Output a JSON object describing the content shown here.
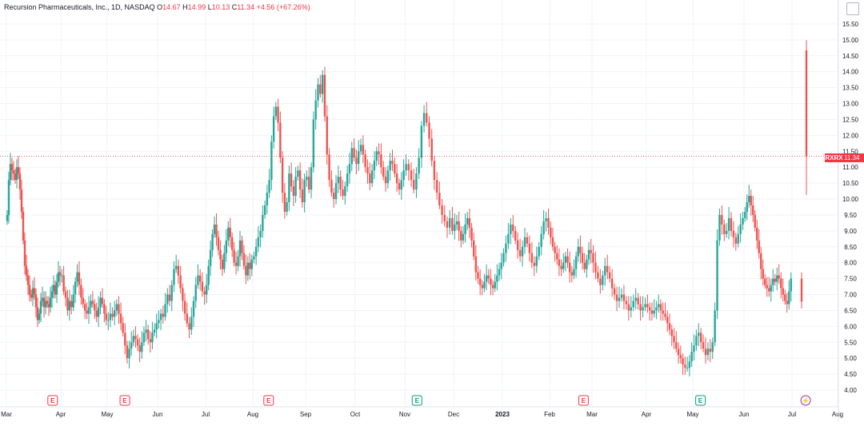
{
  "header": {
    "name": "Recursion Pharmaceuticals, Inc., 1D, NASDAQ",
    "o_label": "O",
    "o": "14.67",
    "h_label": "H",
    "h": "14.99",
    "l_label": "L",
    "l": "10.13",
    "c_label": "C",
    "c": "11.34",
    "change": "+4.56 (+67.26%)"
  },
  "price_tag": {
    "symbol": "RXRX",
    "price": "11.34"
  },
  "colors": {
    "up": "#26a69a",
    "down": "#ef5350",
    "grid": "#f0f3fa",
    "axis_text": "#131722",
    "priceline": "#f23645"
  },
  "chart_data": {
    "type": "candlestick",
    "ylim": [
      3.85,
      15.75
    ],
    "y_ticks": [
      "4.00",
      "4.50",
      "5.00",
      "5.50",
      "6.00",
      "6.50",
      "7.00",
      "7.50",
      "8.00",
      "8.50",
      "9.00",
      "9.50",
      "10.00",
      "10.50",
      "11.00",
      "11.50",
      "12.00",
      "12.50",
      "13.00",
      "13.50",
      "14.00",
      "14.50",
      "15.00",
      "15.50"
    ],
    "x_ticks": [
      "Mar",
      "Apr",
      "May",
      "Jun",
      "Jul",
      "Aug",
      "Sep",
      "Oct",
      "Nov",
      "Dec",
      "2023",
      "Feb",
      "Mar",
      "Apr",
      "May",
      "Jun",
      "Jul",
      "Aug"
    ],
    "last_price": 11.34,
    "events": [
      {
        "month_index": 0.85,
        "type": "earnings",
        "label": "E",
        "color": "#f23645"
      },
      {
        "month_index": 2.35,
        "type": "earnings",
        "label": "E",
        "color": "#f23645"
      },
      {
        "month_index": 5.3,
        "type": "earnings",
        "label": "E",
        "color": "#f23645"
      },
      {
        "month_index": 8.25,
        "type": "earnings",
        "label": "E",
        "color": "#089981"
      },
      {
        "month_index": 11.8,
        "type": "earnings",
        "label": "E",
        "color": "#f23645"
      },
      {
        "month_index": 14.15,
        "type": "earnings",
        "label": "E",
        "color": "#089981"
      },
      {
        "month_index": 16.3,
        "type": "dividend",
        "label": "⚡",
        "color": "#9c27b0"
      }
    ],
    "closes": [
      [
        9.5,
        10.6,
        11.1,
        10.9,
        10.8,
        10.6,
        11.0,
        10.8,
        10.3,
        9.6,
        8.7,
        7.9,
        7.6,
        7.3,
        7.0,
        6.9,
        7.2,
        7.0,
        6.6,
        6.2,
        6.4,
        6.8,
        6.9,
        6.6,
        6.8,
        6.7,
        6.6,
        6.9,
        7.1,
        7.3,
        7.0,
        7.4,
        7.7,
        7.6
      ],
      [
        7.6,
        7.1,
        6.9,
        6.5,
        6.8,
        6.6,
        7.0,
        7.4,
        7.7,
        7.3,
        6.9,
        6.7,
        6.5,
        6.4,
        6.6,
        6.8,
        6.7,
        6.5,
        6.3,
        6.6,
        6.9,
        6.7,
        6.4,
        6.2
      ],
      [
        6.2,
        6.4,
        6.3,
        6.5,
        6.7,
        6.4,
        6.1,
        5.8,
        5.4,
        5.0,
        5.3,
        5.5,
        5.7,
        5.6,
        5.4,
        5.2,
        5.5,
        5.8,
        5.9,
        5.6,
        5.5,
        5.8,
        5.9,
        6.1
      ],
      [
        6.2,
        6.4,
        6.3,
        6.7,
        7.0,
        6.8,
        7.3,
        7.8,
        7.9,
        7.6,
        7.2,
        6.8,
        6.4,
        6.1,
        5.9,
        6.3,
        6.8,
        7.3,
        7.6,
        7.4,
        7.1,
        7.0
      ],
      [
        7.3,
        7.9,
        8.4,
        8.9,
        9.2,
        8.8,
        8.4,
        8.1,
        7.8,
        8.3,
        8.7,
        9.1,
        8.8,
        8.4,
        8.0,
        7.9,
        8.2,
        8.7,
        8.3,
        7.9,
        7.6,
        8.0,
        7.8,
        8.1
      ],
      [
        8.2,
        8.5,
        8.8,
        9.0,
        9.5,
        9.8,
        10.2,
        10.6,
        11.8,
        12.6,
        12.9,
        12.4,
        11.3,
        10.2,
        9.6,
        9.9,
        10.8,
        10.4,
        10.1,
        10.7,
        10.9,
        10.3,
        9.9,
        10.6
      ],
      [
        10.7,
        10.3,
        11.0,
        12.5,
        13.1,
        13.6,
        13.3,
        13.9,
        12.6,
        11.4,
        10.6,
        10.2,
        10.0,
        10.5,
        10.7,
        10.3,
        10.1,
        10.4,
        10.8,
        11.1,
        11.6,
        11.3
      ],
      [
        11.1,
        11.5,
        11.7,
        11.4,
        11.0,
        10.8,
        10.5,
        10.9,
        11.2,
        11.5,
        11.4,
        11.0,
        10.7,
        10.5,
        10.9,
        11.2,
        11.1,
        10.8,
        10.5,
        10.3,
        10.6,
        10.9
      ],
      [
        11.1,
        10.9,
        10.6,
        10.3,
        10.8,
        11.3,
        12.3,
        12.7,
        12.4,
        11.9,
        11.2,
        10.6,
        10.2,
        9.8,
        9.5,
        9.3,
        9.1,
        9.4,
        9.0
      ],
      [
        9.2,
        9.3,
        9.0,
        8.7,
        8.9,
        9.2,
        9.4,
        9.1,
        8.7,
        8.2,
        7.7,
        7.5,
        7.3,
        7.2,
        7.4,
        7.6,
        7.5,
        7.3,
        7.2,
        7.4,
        7.6,
        7.8,
        8.0
      ],
      [
        8.3,
        8.6,
        8.9,
        9.2,
        9.0,
        8.7,
        8.4,
        8.2,
        8.5,
        8.8,
        8.6,
        8.3,
        8.0,
        7.9,
        8.2,
        8.5,
        8.9,
        9.3,
        9.4,
        9.1
      ],
      [
        8.8,
        8.5,
        8.3,
        8.1,
        7.9,
        7.8,
        8.0,
        8.2,
        8.0,
        7.7,
        7.6,
        7.8,
        8.2,
        8.5,
        8.3,
        8.0,
        7.8,
        8.1,
        8.4,
        8.3
      ],
      [
        8.0,
        7.7,
        7.5,
        7.3,
        7.6,
        7.9,
        7.7,
        7.5,
        7.2,
        7.0,
        6.8,
        6.9,
        7.0,
        6.8,
        6.7,
        6.5,
        6.6,
        6.8,
        6.9,
        6.7,
        6.5,
        6.6,
        6.7
      ],
      [
        6.6,
        6.5,
        6.4,
        6.5,
        6.6,
        6.7,
        6.5,
        6.4,
        6.3,
        6.1,
        5.9,
        5.7,
        5.5,
        5.3,
        5.1,
        5.0,
        4.8,
        4.7,
        4.7,
        4.9,
        5.2
      ],
      [
        5.4,
        5.7,
        5.8,
        5.5,
        5.3,
        5.1,
        5.3,
        5.2,
        5.5,
        6.5,
        8.7,
        9.5,
        9.2,
        8.9,
        9.0,
        9.4,
        9.0,
        8.8,
        8.6,
        8.9,
        9.2,
        9.4
      ],
      [
        9.6,
        9.9,
        10.1,
        9.8,
        9.5,
        9.1,
        8.7,
        8.3,
        7.8,
        7.5,
        7.3,
        7.2,
        7.1,
        7.3,
        7.5,
        7.4,
        7.6,
        7.5,
        7.2,
        7.0,
        6.8,
        6.7,
        7.1,
        7.5
      ],
      [
        6.78,
        11.34
      ]
    ]
  }
}
